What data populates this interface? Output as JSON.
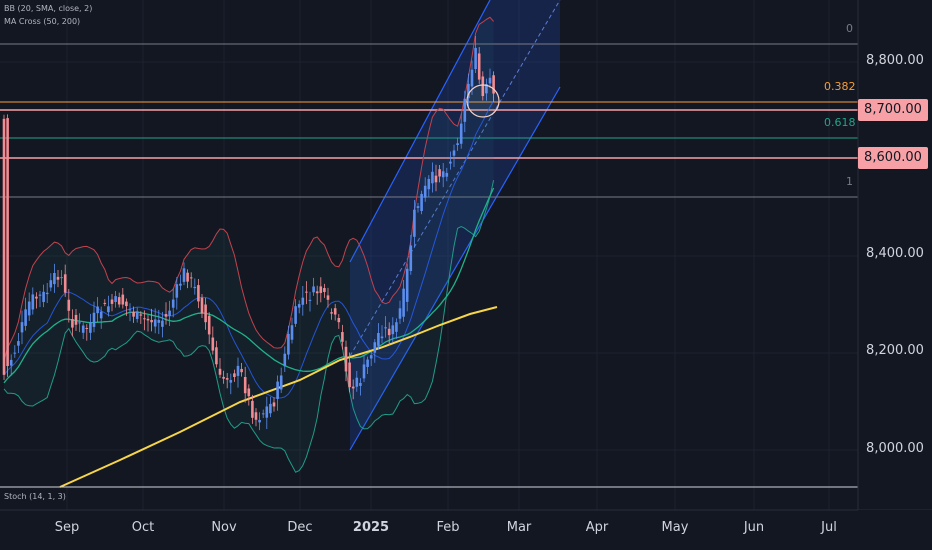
{
  "legend": {
    "bb": "BB (20, SMA, close, 2)",
    "ma": "MA Cross (50, 200)",
    "stoch": "Stoch (14, 1, 3)"
  },
  "fib": {
    "level0": "0",
    "level382": "0.382",
    "level618": "0.618",
    "level1": "1"
  },
  "price_axis": [
    "8,800.00",
    "8,400.00",
    "8,200.00",
    "8,000.00"
  ],
  "badges": [
    "8,700.00",
    "8,600.00"
  ],
  "time_axis": [
    "Sep",
    "Oct",
    "Nov",
    "Dec",
    "2025",
    "Feb",
    "Mar",
    "Apr",
    "May",
    "Jun",
    "Jul"
  ],
  "colors": {
    "background": "#131722",
    "up": "#5b8def",
    "down": "#f28b92",
    "fib0": "#787b86",
    "fib382": "#f59d3b",
    "fib618": "#20a48c",
    "horizontal_line": "#f7a1a6",
    "channel": "#2962ff",
    "ma200": "#f7d54a",
    "ma50": "#20b28a",
    "bb_upper": "#c2424d",
    "bb_lower": "#1f9c88"
  }
}
